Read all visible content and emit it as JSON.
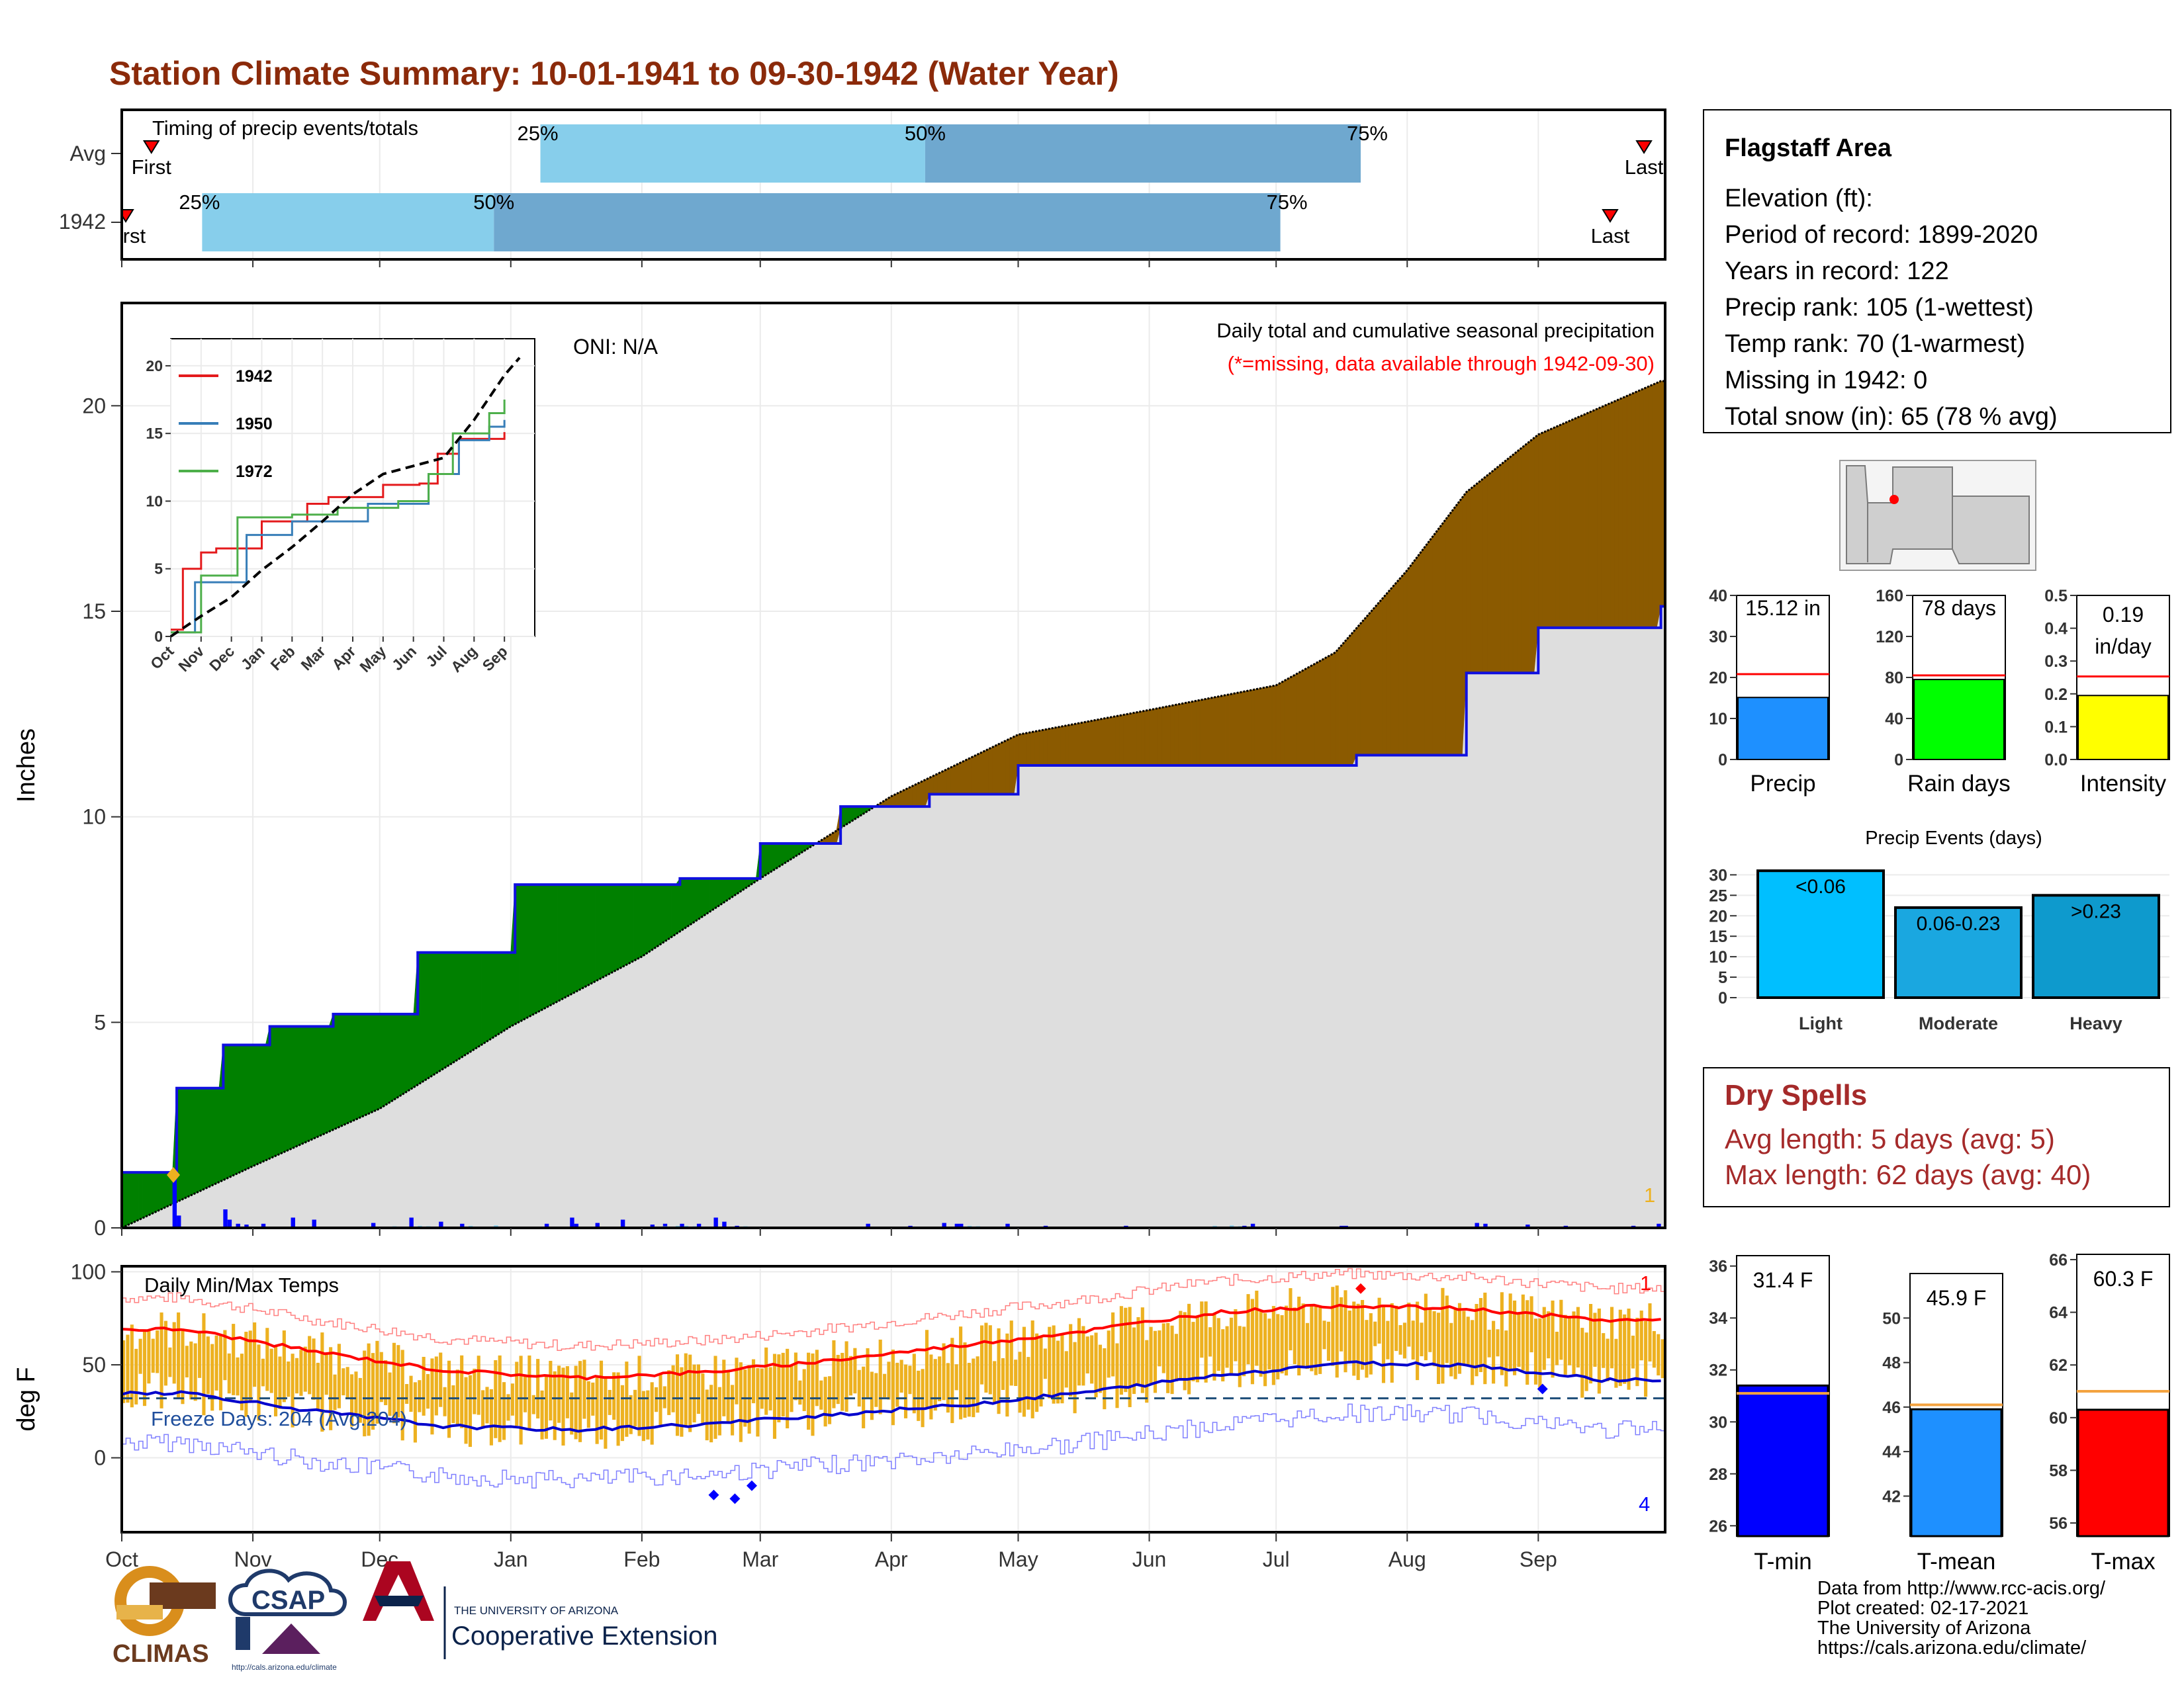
{
  "title": "Station Climate Summary: 10-01-1941 to 09-30-1942 (Water Year)",
  "colors": {
    "title": "#8B2A0A",
    "light_blue": "#87CEEB",
    "mid_blue": "#6FA8CF",
    "green": "#008000",
    "brown": "#8B5A00",
    "gray_fill": "#DEDEDE",
    "blue_line": "#1010E0",
    "orange": "#EDB120",
    "red": "#FF0000",
    "dry_text": "#A52A2A"
  },
  "timing": {
    "label": "Timing of precip events/totals",
    "rows": [
      {
        "name": "Avg",
        "first_label": "First",
        "last_label": "Last",
        "p25": "25%",
        "p50": "50%",
        "p75": "75%",
        "first_date": "1941-10-08",
        "q25_date": "1942-01-08",
        "q50_date": "1942-04-09",
        "q75_date": "1942-07-21",
        "last_date": "1942-09-26"
      },
      {
        "name": "1942",
        "first_label": "First",
        "last_label": "Last",
        "p25": "25%",
        "p50": "50%",
        "p75": "75%",
        "first_date": "1941-10-01",
        "q25_date": "1941-10-20",
        "q50_date": "1941-12-28",
        "q75_date": "1942-07-02",
        "last_date": "1942-09-18"
      }
    ]
  },
  "main_panel": {
    "ylabel": "Inches",
    "oni": "ONI: N/A",
    "caption1": "Daily total and cumulative seasonal precipitation",
    "caption2": "(*=missing, data available through 1942-09-30)",
    "corner_mark": "1",
    "y_ticks": [
      "0",
      "5",
      "10",
      "15",
      "20"
    ],
    "ylim": [
      0,
      22.5
    ]
  },
  "inset": {
    "y_ticks": [
      "0",
      "5",
      "10",
      "15",
      "20"
    ],
    "x_ticks": [
      "Oct",
      "Nov",
      "Dec",
      "Jan",
      "Feb",
      "Mar",
      "Apr",
      "May",
      "Jun",
      "Jul",
      "Aug",
      "Sep"
    ],
    "legend": [
      "1942",
      "1950",
      "1972"
    ]
  },
  "temp_panel": {
    "ylabel": "deg F",
    "title": "Daily Min/Max Temps",
    "freeze": "Freeze Days: 204 (Avg:204)",
    "corner_top": "1",
    "corner_bottom": "4",
    "y_ticks": [
      "0",
      "50",
      "100"
    ],
    "ylim": [
      -40,
      103
    ]
  },
  "months": [
    "Oct",
    "Nov",
    "Dec",
    "Jan",
    "Feb",
    "Mar",
    "Apr",
    "May",
    "Jun",
    "Jul",
    "Aug",
    "Sep"
  ],
  "info": {
    "station": "Flagstaff Area",
    "lines": [
      "Elevation (ft):",
      "Period of record: 1899-2020",
      "Years in record: 122",
      "Precip rank: 105 (1-wettest)",
      "Temp rank: 70 (1-warmest)",
      "Missing in 1942: 0",
      "Total snow (in): 65 (78 % avg)"
    ]
  },
  "mini_bars": [
    {
      "name": "Precip",
      "label": "15.12 in",
      "value": 15.12,
      "avg": 20.8,
      "max": 40,
      "ticks": [
        "0",
        "10",
        "20",
        "30",
        "40"
      ],
      "color": "#1E90FF"
    },
    {
      "name": "Rain days",
      "label": "78 days",
      "value": 78,
      "avg": 82,
      "max": 160,
      "ticks": [
        "0",
        "40",
        "80",
        "120",
        "160"
      ],
      "color": "#00FF00"
    },
    {
      "name": "Intensity",
      "label": "0.19",
      "label2": "in/day",
      "value": 0.195,
      "avg": 0.253,
      "max": 0.5,
      "ticks": [
        "0.0",
        "0.1",
        "0.2",
        "0.3",
        "0.4",
        "0.5"
      ],
      "color": "#FFFF00"
    }
  ],
  "events": {
    "title": "Precip Events (days)",
    "ticks": [
      "0",
      "5",
      "10",
      "15",
      "20",
      "25",
      "30"
    ],
    "max": 32,
    "bars": [
      {
        "name": "Light",
        "label": "<0.06",
        "value": 31,
        "color": "#00BFFF"
      },
      {
        "name": "Moderate",
        "label": "0.06-0.23",
        "value": 22,
        "color": "#1AA7E0"
      },
      {
        "name": "Heavy",
        "label": ">0.23",
        "value": 25,
        "color": "#0E9ACD"
      }
    ]
  },
  "dry_spells": {
    "title": "Dry Spells",
    "avg_line": "Avg length: 5 days (avg: 5)",
    "max_line": "Max length: 62 days (avg: 40)"
  },
  "temp_bars": [
    {
      "name": "T-min",
      "label": "31.4 F",
      "value": 31.4,
      "avg": 31.1,
      "min": 25.6,
      "max": 36.4,
      "ticks": [
        "26",
        "28",
        "30",
        "32",
        "34",
        "36"
      ],
      "color": "#0000FF"
    },
    {
      "name": "T-mean",
      "label": "45.9 F",
      "value": 45.9,
      "avg": 46.1,
      "min": 40.2,
      "max": 52.0,
      "ticks": [
        "42",
        "44",
        "46",
        "48",
        "50"
      ],
      "color": "#1E90FF"
    },
    {
      "name": "T-max",
      "label": "60.3 F",
      "value": 60.3,
      "avg": 61.0,
      "min": 55.5,
      "max": 66.2,
      "ticks": [
        "56",
        "58",
        "60",
        "62",
        "64",
        "66"
      ],
      "color": "#FF0000"
    }
  ],
  "footer": {
    "lines": [
      "Data from http://www.rcc-acis.org/",
      "Plot created: 02-17-2021",
      "The University of Arizona",
      "https://cals.arizona.edu/climate/"
    ],
    "climas": "CLIMAS",
    "csap": "CSAP",
    "csap_url": "http://cals.arizona.edu/climate",
    "ua_small": "THE UNIVERSITY OF ARIZONA",
    "ua_big": "Cooperative Extension"
  },
  "chart_data": {
    "type": "area",
    "series": [
      {
        "name": "1942",
        "x": [
          "1941-10-01",
          "1941-10-14",
          "1941-10-25",
          "1941-11-05",
          "1941-11-20",
          "1941-12-10",
          "1942-01-02",
          "1942-02-10",
          "1942-03-01",
          "1942-03-20",
          "1942-04-10",
          "1942-05-01",
          "1942-07-01",
          "1942-07-20",
          "1942-08-15",
          "1942-09-01",
          "1942-09-30"
        ],
        "cumulative": [
          1.35,
          3.4,
          4.45,
          4.9,
          5.2,
          6.7,
          8.35,
          8.5,
          9.35,
          10.25,
          10.55,
          11.25,
          11.25,
          11.5,
          13.5,
          14.6,
          15.12
        ]
      },
      {
        "name": "Avg",
        "x": [
          "1941-10-01",
          "1941-11-01",
          "1941-12-01",
          "1942-01-01",
          "1942-02-01",
          "1942-03-01",
          "1942-04-01",
          "1942-05-01",
          "1942-06-01",
          "1942-07-01",
          "1942-07-15",
          "1942-08-01",
          "1942-08-15",
          "1942-09-01",
          "1942-09-30"
        ],
        "cumulative": [
          0,
          1.5,
          2.9,
          4.9,
          6.6,
          8.5,
          10.5,
          12.0,
          12.6,
          13.2,
          14.0,
          16.0,
          17.9,
          19.3,
          20.6
        ]
      }
    ],
    "inset_series": [
      {
        "name": "1942",
        "x_month_index": [
          0,
          0.4,
          1.0,
          1.5,
          3.0,
          4.5,
          5.2,
          7.0,
          8.2,
          8.8,
          9.5,
          11.0
        ],
        "y": [
          0.5,
          5.0,
          6.2,
          6.5,
          8.5,
          9.8,
          10.3,
          11.2,
          11.3,
          13.5,
          14.6,
          15.1
        ]
      },
      {
        "name": "1950",
        "x_month_index": [
          0,
          0.8,
          2.5,
          4.0,
          6.5,
          8.5,
          9.5,
          10.5,
          11.0
        ],
        "y": [
          0.3,
          4.0,
          7.5,
          8.5,
          9.8,
          12.0,
          14.5,
          15.5,
          16.0
        ]
      },
      {
        "name": "1972",
        "x_month_index": [
          0,
          1.0,
          2.2,
          4.0,
          5.5,
          7.5,
          8.5,
          9.3,
          10.5,
          11.0
        ],
        "y": [
          0.3,
          4.5,
          8.8,
          9.0,
          9.5,
          10.0,
          12.0,
          15.0,
          16.5,
          17.5
        ]
      },
      {
        "name": "Avg",
        "x_month_index": [
          0,
          1,
          2,
          3,
          4,
          5,
          6,
          7,
          8,
          9,
          10,
          11,
          11.5
        ],
        "y": [
          0,
          1.5,
          2.9,
          4.9,
          6.6,
          8.5,
          10.5,
          12.0,
          12.6,
          13.2,
          16.0,
          19.3,
          20.6
        ]
      }
    ],
    "temperature": {
      "avg_max_by_month": [
        69,
        57,
        47,
        43,
        46,
        52,
        60,
        68,
        78,
        82,
        80,
        74
      ],
      "avg_min_by_month": [
        35,
        25,
        17,
        15,
        18,
        23,
        28,
        35,
        44,
        51,
        50,
        42
      ],
      "freezing_line": 32
    },
    "ylim": [
      0,
      22.5
    ]
  }
}
